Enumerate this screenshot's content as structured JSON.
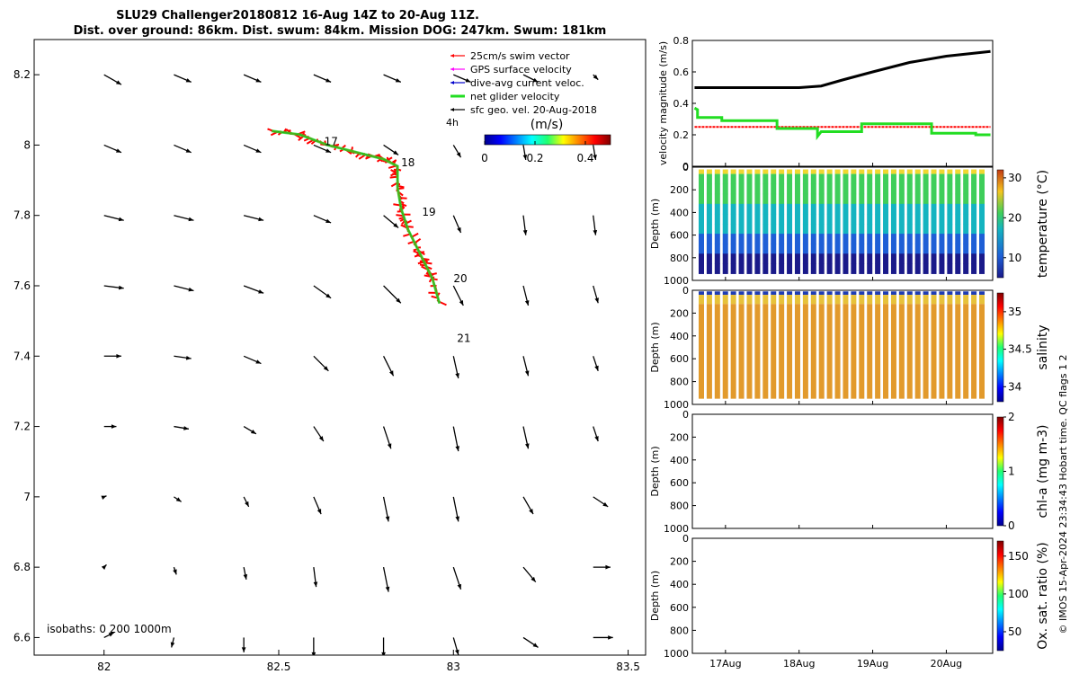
{
  "title": {
    "line1": "SLU29 Challenger20180812 16-Aug 14Z to 20-Aug 11Z.",
    "line2": "Dist. over ground: 86km. Dist. swum: 84km. Mission DOG: 247km. Swum: 181km"
  },
  "colors": {
    "swim": "#ff0000",
    "gps": "#ff00ff",
    "dac": "#0000cc",
    "net": "#22dd22",
    "track": "#000000"
  },
  "map": {
    "xlim": [
      81.8,
      83.55
    ],
    "ylim": [
      6.55,
      8.3
    ],
    "xticks": [
      "82",
      "82.5",
      "83",
      "83.5"
    ],
    "yticks": [
      "6.6",
      "6.8",
      "7",
      "7.2",
      "7.4",
      "7.6",
      "7.8",
      "8",
      "8.2"
    ],
    "legend": [
      "25cm/s swim vector",
      "GPS surface velocity",
      "dive-avg current veloc.",
      "net glider velocity",
      "sfc geo. vel. 20-Aug-2018"
    ],
    "scale_label": "4h",
    "colorbar_label": "(m/s)",
    "colorbar_ticks": [
      "0",
      "0.2",
      "0.4"
    ],
    "colorbar_range": [
      0,
      0.5
    ],
    "day_labels": [
      {
        "text": "17",
        "lon": 82.62,
        "lat": 8.01
      },
      {
        "text": "18",
        "lon": 82.84,
        "lat": 7.95
      },
      {
        "text": "19",
        "lon": 82.9,
        "lat": 7.81
      },
      {
        "text": "20",
        "lon": 82.99,
        "lat": 7.62
      },
      {
        "text": "21",
        "lon": 83.0,
        "lat": 7.45
      }
    ],
    "isobath_label": "isobaths: 0   200  1000m",
    "track": [
      [
        82.48,
        8.04
      ],
      [
        82.56,
        8.03
      ],
      [
        82.64,
        8.0
      ],
      [
        82.72,
        7.98
      ],
      [
        82.8,
        7.96
      ],
      [
        82.84,
        7.94
      ],
      [
        82.84,
        7.88
      ],
      [
        82.85,
        7.82
      ],
      [
        82.87,
        7.76
      ],
      [
        82.9,
        7.7
      ],
      [
        82.92,
        7.66
      ],
      [
        82.94,
        7.62
      ],
      [
        82.96,
        7.55
      ]
    ],
    "current_grid": {
      "lon": [
        82.0,
        82.2,
        82.4,
        82.6,
        82.8,
        83.0,
        83.2,
        83.4
      ],
      "lat": [
        8.2,
        8.0,
        7.8,
        7.6,
        7.4,
        7.2,
        7.0,
        6.8,
        6.6
      ],
      "u": [
        [
          0.35,
          0.35,
          0.35,
          0.35,
          0.35,
          0.35,
          0.3,
          0.1
        ],
        [
          0.35,
          0.35,
          0.35,
          0.35,
          0.3,
          0.15,
          0.05,
          0.05
        ],
        [
          0.4,
          0.4,
          0.4,
          0.35,
          0.3,
          0.15,
          0.05,
          0.05
        ],
        [
          0.4,
          0.4,
          0.4,
          0.35,
          0.35,
          0.2,
          0.1,
          0.1
        ],
        [
          0.35,
          0.35,
          0.35,
          0.3,
          0.2,
          0.1,
          0.1,
          0.1
        ],
        [
          0.25,
          0.3,
          0.25,
          0.2,
          0.15,
          0.1,
          0.1,
          0.1
        ],
        [
          0.05,
          0.15,
          0.1,
          0.15,
          0.1,
          0.1,
          0.2,
          0.3
        ],
        [
          0.05,
          0.05,
          0.05,
          0.05,
          0.1,
          0.15,
          0.25,
          0.35
        ],
        [
          0.2,
          -0.05,
          0.0,
          0.0,
          0.0,
          0.1,
          0.3,
          0.4
        ]
      ],
      "v": [
        [
          -0.2,
          -0.15,
          -0.15,
          -0.15,
          -0.15,
          -0.15,
          -0.15,
          -0.1
        ],
        [
          -0.15,
          -0.15,
          -0.15,
          -0.15,
          -0.2,
          -0.25,
          -0.3,
          -0.3
        ],
        [
          -0.1,
          -0.1,
          -0.1,
          -0.15,
          -0.25,
          -0.35,
          -0.4,
          -0.4
        ],
        [
          -0.05,
          -0.1,
          -0.15,
          -0.25,
          -0.35,
          -0.4,
          -0.4,
          -0.35
        ],
        [
          0.0,
          -0.05,
          -0.15,
          -0.3,
          -0.4,
          -0.45,
          -0.4,
          -0.3
        ],
        [
          0.0,
          -0.05,
          -0.15,
          -0.3,
          -0.45,
          -0.5,
          -0.45,
          -0.3
        ],
        [
          0.02,
          -0.1,
          -0.2,
          -0.35,
          -0.5,
          -0.5,
          -0.35,
          -0.2
        ],
        [
          0.05,
          -0.15,
          -0.25,
          -0.4,
          -0.5,
          -0.45,
          -0.3,
          0.0
        ],
        [
          0.1,
          -0.2,
          -0.3,
          -0.4,
          -0.4,
          -0.35,
          -0.2,
          0.0
        ]
      ]
    }
  },
  "chart_data": [
    {
      "type": "line",
      "ylabel": "velocity magnitude (m/s)",
      "ylim": [
        0,
        0.8
      ],
      "yticks": [
        "0",
        "0.2",
        "0.4",
        "0.6",
        "0.8"
      ],
      "xlim": [
        16.55,
        20.63
      ],
      "series": [
        {
          "x": [
            16.58,
            17.0,
            17.5,
            18.0,
            18.3,
            18.6,
            19.0,
            19.5,
            20.0,
            20.6
          ],
          "values": [
            0.5,
            0.5,
            0.5,
            0.5,
            0.51,
            0.55,
            0.6,
            0.66,
            0.7,
            0.73
          ]
        },
        {
          "x": [
            16.58,
            20.6
          ],
          "values": [
            0.25,
            0.25
          ]
        },
        {
          "x": [
            16.58,
            16.62,
            16.62,
            16.95,
            16.95,
            17.7,
            17.7,
            18.25,
            18.25,
            18.3,
            18.3,
            18.85,
            18.85,
            19.8,
            19.8,
            20.4,
            20.4,
            20.6
          ],
          "values": [
            0.37,
            0.36,
            0.31,
            0.31,
            0.29,
            0.29,
            0.24,
            0.24,
            0.19,
            0.22,
            0.22,
            0.22,
            0.27,
            0.27,
            0.21,
            0.21,
            0.2,
            0.2
          ]
        }
      ]
    },
    {
      "type": "heatmap",
      "ylabel": "Depth (m)",
      "colorbar_label": "temperature (°C)",
      "clim": [
        5,
        32
      ],
      "cticks": [
        "10",
        "20",
        "30"
      ],
      "ylim": [
        0,
        1000
      ],
      "yticks": [
        "0",
        "200",
        "400",
        "600",
        "800",
        "1000"
      ]
    },
    {
      "type": "heatmap",
      "ylabel": "Depth (m)",
      "colorbar_label": "salinity",
      "clim": [
        33.8,
        35.25
      ],
      "cticks": [
        "34",
        "34.5",
        "35"
      ],
      "ylim": [
        0,
        1000
      ],
      "yticks": [
        "0",
        "200",
        "400",
        "600",
        "800",
        "1000"
      ]
    },
    {
      "type": "heatmap",
      "ylabel": "Depth (m)",
      "colorbar_label": "chl-a (mg m-3)",
      "clim": [
        0,
        2
      ],
      "cticks": [
        "0",
        "1",
        "2"
      ],
      "ylim": [
        0,
        1000
      ],
      "yticks": [
        "0",
        "200",
        "400",
        "600",
        "800",
        "1000"
      ]
    },
    {
      "type": "heatmap",
      "ylabel": "Depth (m)",
      "colorbar_label": "Ox. sat. ratio (%)",
      "clim": [
        25,
        170
      ],
      "cticks": [
        "50",
        "100",
        "150"
      ],
      "ylim": [
        0,
        1000
      ],
      "yticks": [
        "0",
        "200",
        "400",
        "600",
        "800",
        "1000"
      ]
    }
  ],
  "time_axis": {
    "xticks": [
      {
        "label": "17Aug",
        "day": 17
      },
      {
        "label": "18Aug",
        "day": 18
      },
      {
        "label": "19Aug",
        "day": 19
      },
      {
        "label": "20Aug",
        "day": 20
      }
    ]
  },
  "credit": "© IMOS 15-Apr-2024 23:34:43 Hobart time. QC flags 1  2"
}
